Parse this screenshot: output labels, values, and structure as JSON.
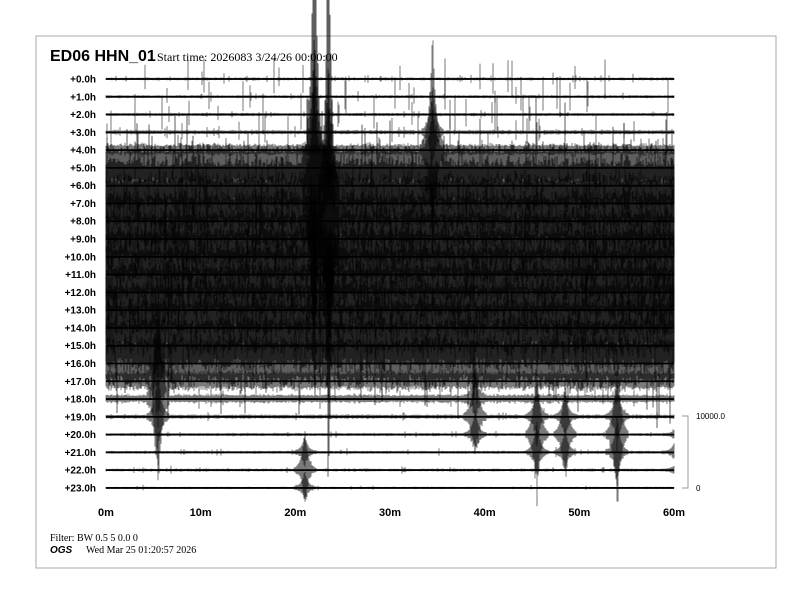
{
  "header": {
    "station": "ED06 HHN_01",
    "start_time": "Start time: 2026083  3/24/26 00:00:00"
  },
  "footer": {
    "filter": "Filter: BW 0.5 5 0.0 0",
    "org": "OGS",
    "generated": "Wed Mar 25 01:20:57 2026"
  },
  "chart_data": {
    "type": "line",
    "title": "ED06 HHN_01",
    "row_labels": [
      "+0.0h",
      "+1.0h",
      "+2.0h",
      "+3.0h",
      "+4.0h",
      "+5.0h",
      "+6.0h",
      "+7.0h",
      "+8.0h",
      "+9.0h",
      "+10.0h",
      "+11.0h",
      "+12.0h",
      "+13.0h",
      "+14.0h",
      "+15.0h",
      "+16.0h",
      "+17.0h",
      "+18.0h",
      "+19.0h",
      "+20.0h",
      "+21.0h",
      "+22.0h",
      "+23.0h"
    ],
    "x_ticks": [
      "0m",
      "10m",
      "20m",
      "30m",
      "40m",
      "50m",
      "60m"
    ],
    "xlim": [
      0,
      60
    ],
    "scale_bar": {
      "top_label": "10000.0",
      "bottom_label": "0"
    },
    "trace_color": "#000000",
    "grid": false
  }
}
